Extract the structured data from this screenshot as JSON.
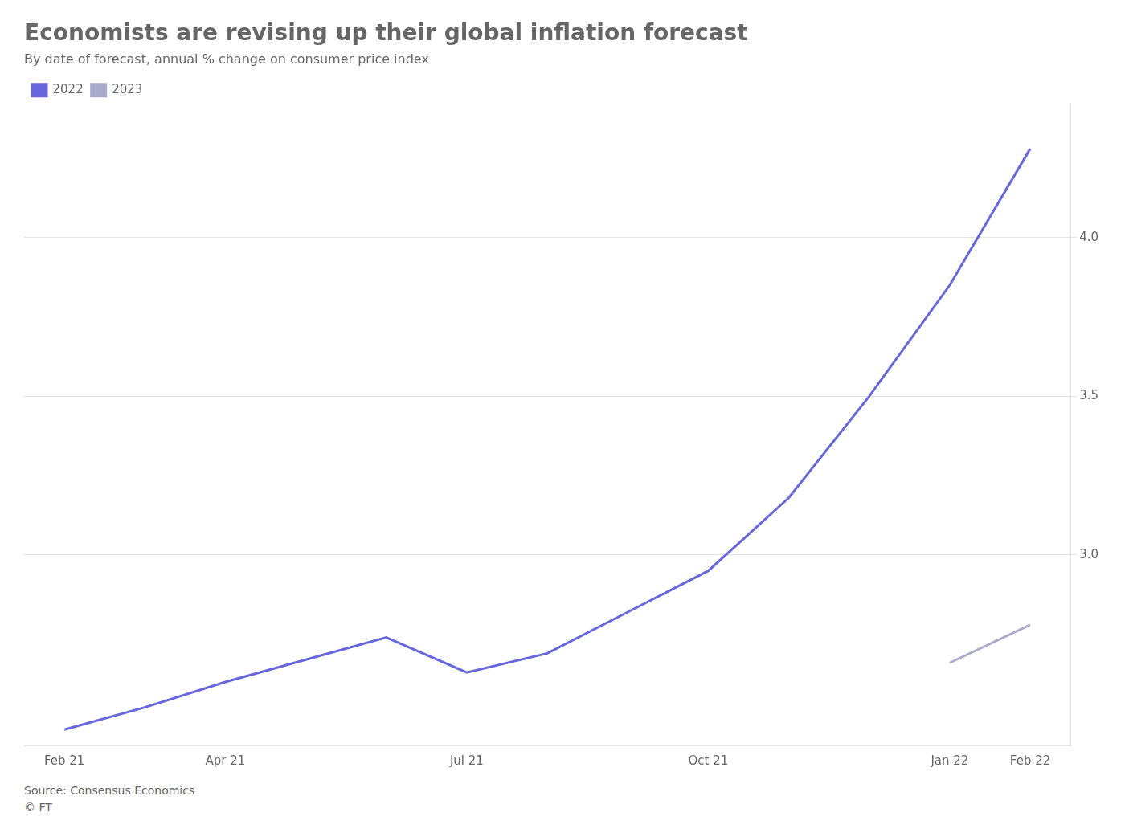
{
  "chart_data": {
    "type": "line",
    "title": "Economists are revising up their global inflation forecast",
    "subtitle": "By date of forecast, annual % change on consumer price index",
    "annotations": [
      "Source: Consensus Economics",
      "© FT"
    ],
    "categories": [
      "Feb 21",
      null,
      "Apr 21",
      null,
      null,
      "Jul 21",
      null,
      null,
      "Oct 21",
      null,
      null,
      "Jan 22",
      "Feb 22"
    ],
    "series": [
      {
        "name": "2022",
        "color": "#6666dd",
        "values": [
          2.45,
          2.52,
          2.6,
          2.67,
          2.74,
          2.63,
          2.69,
          2.82,
          2.95,
          3.18,
          3.5,
          3.85,
          4.28
        ]
      },
      {
        "name": "2023",
        "color": "#aaaacc",
        "values": [
          null,
          null,
          null,
          null,
          null,
          null,
          null,
          null,
          null,
          null,
          null,
          2.66,
          2.78
        ]
      }
    ],
    "ylim": [
      2.4,
      4.42
    ],
    "yticks": [
      {
        "value": 3.0,
        "label": "3.0"
      },
      {
        "value": 3.5,
        "label": "3.5"
      },
      {
        "value": 4.0,
        "label": "4.0"
      }
    ],
    "grid": true,
    "legend": "top-left"
  }
}
